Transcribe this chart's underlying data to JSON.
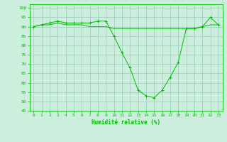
{
  "x": [
    0,
    1,
    2,
    3,
    4,
    5,
    6,
    7,
    8,
    9,
    10,
    11,
    12,
    13,
    14,
    15,
    16,
    17,
    18,
    19,
    20,
    21,
    22,
    23
  ],
  "line1": [
    90,
    91,
    92,
    93,
    92,
    92,
    92,
    92,
    93,
    93,
    85,
    76,
    68,
    56,
    53,
    52,
    56,
    63,
    71,
    89,
    89,
    90,
    95,
    91
  ],
  "line2": [
    90,
    91,
    91,
    92,
    91,
    91,
    91,
    90,
    90,
    90,
    89,
    89,
    89,
    89,
    89,
    89,
    89,
    89,
    89,
    89,
    89,
    90,
    91,
    91
  ],
  "line_color": "#00bb00",
  "bg_color": "#cceedd",
  "grid_color": "#99ccbb",
  "xlabel": "Humidité relative (%)",
  "ylim": [
    45,
    102
  ],
  "xlim": [
    -0.5,
    23.5
  ],
  "yticks": [
    45,
    50,
    55,
    60,
    65,
    70,
    75,
    80,
    85,
    90,
    95,
    100
  ],
  "xticks": [
    0,
    1,
    2,
    3,
    4,
    5,
    6,
    7,
    8,
    9,
    10,
    11,
    12,
    13,
    14,
    15,
    16,
    17,
    18,
    19,
    20,
    21,
    22,
    23
  ]
}
